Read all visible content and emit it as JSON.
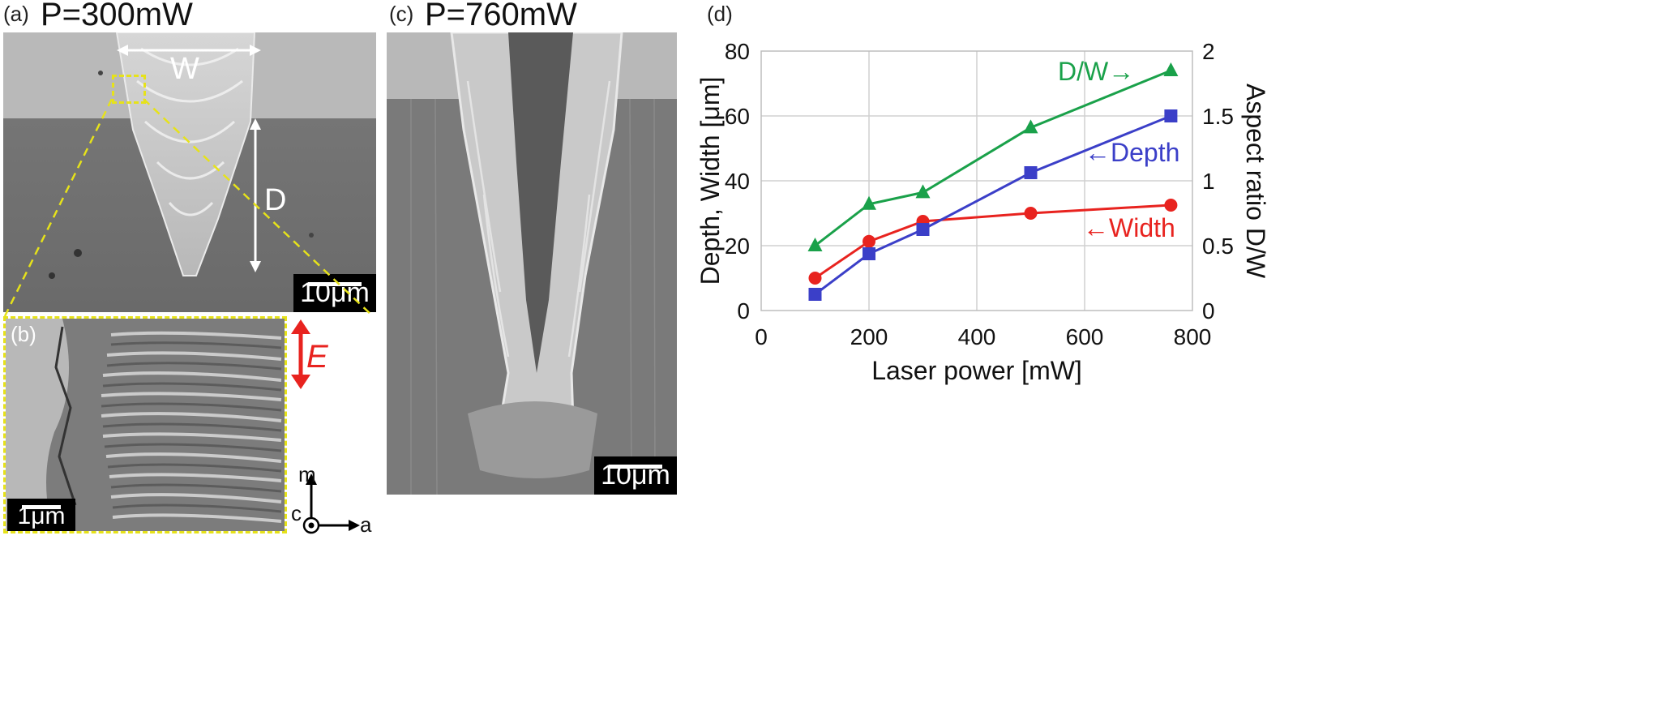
{
  "panels": {
    "a": {
      "label": "(a)",
      "title": "P=300mW",
      "width_marker": "W",
      "depth_marker": "D",
      "scalebar": "10μm"
    },
    "b": {
      "label": "(b)",
      "scalebar": "1μm",
      "polarization": "E"
    },
    "c": {
      "label": "(c)",
      "title": "P=760mW",
      "scalebar": "10μm"
    },
    "d": {
      "label": "(d)"
    }
  },
  "axes_triad": {
    "up": "m",
    "right": "a",
    "out": "c"
  },
  "colors": {
    "width": "#e8231f",
    "depth": "#3b3fc8",
    "dw": "#1aa14a",
    "e_arrow": "#e8231f",
    "zoom_box": "#e6e21a"
  },
  "chart_data": {
    "type": "line",
    "xlabel": "Laser power [mW]",
    "ylabel": "Depth, Width [μm]",
    "y2label": "Aspect ratio D/W",
    "xlim": [
      0,
      800
    ],
    "ylim": [
      0,
      80
    ],
    "y2lim": [
      0,
      2
    ],
    "xticks": [
      "0",
      "200",
      "400",
      "600",
      "800"
    ],
    "yticks": [
      "0",
      "20",
      "40",
      "60",
      "80"
    ],
    "y2ticks": [
      "0",
      "0.5",
      "1",
      "1.5",
      "2"
    ],
    "grid": true,
    "x": [
      100,
      200,
      300,
      500,
      760
    ],
    "series": [
      {
        "name": "←Width",
        "axis": "left",
        "marker": "circle",
        "values": [
          10,
          21.3,
          27.5,
          30,
          32.5
        ]
      },
      {
        "name": "←Depth",
        "axis": "left",
        "marker": "square",
        "values": [
          5,
          17.5,
          25,
          42.5,
          60
        ]
      },
      {
        "name": "D/W→",
        "axis": "right",
        "marker": "triangle",
        "values": [
          0.5,
          0.82,
          0.91,
          1.41,
          1.85
        ]
      }
    ]
  }
}
